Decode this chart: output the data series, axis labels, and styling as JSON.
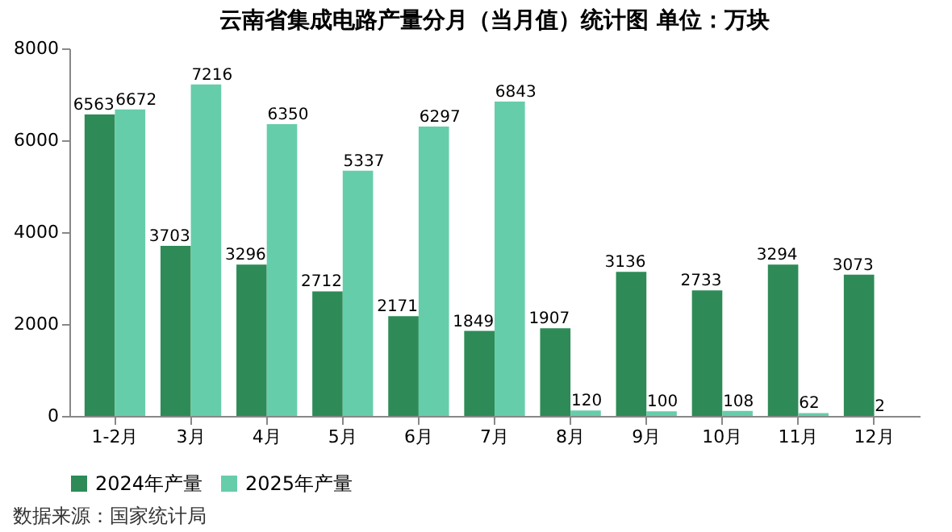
{
  "chart_data": {
    "type": "bar",
    "title": "云南省集成电路产量分月（当月值）统计图 单位：万块",
    "categories": [
      "1-2月",
      "3月",
      "4月",
      "5月",
      "6月",
      "7月",
      "8月",
      "9月",
      "10月",
      "11月",
      "12月"
    ],
    "series": [
      {
        "name": "2024年产量",
        "color": "#2e8b57",
        "values": [
          6563,
          3703,
          3296,
          2712,
          2171,
          1849,
          1907,
          3136,
          2733,
          3294,
          3073
        ]
      },
      {
        "name": "2025年产量",
        "color": "#66cdaa",
        "values": [
          6672,
          7216,
          6350,
          5337,
          6297,
          6843,
          120,
          100,
          108,
          62,
          2
        ]
      }
    ],
    "ylim": [
      0,
      8000
    ],
    "yticks": [
      0,
      2000,
      4000,
      6000,
      8000
    ],
    "grid": false,
    "legend": "bottom",
    "data_labels": true,
    "annotations": [
      "数据来源：国家统计局"
    ]
  }
}
